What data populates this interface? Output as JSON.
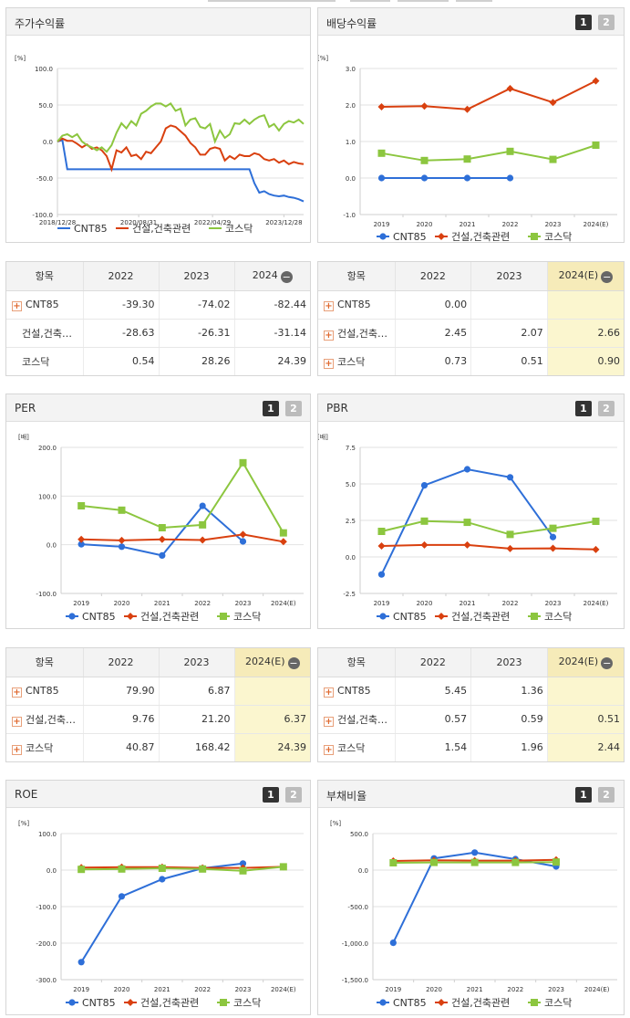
{
  "common": {
    "legend": [
      "CNT85",
      "건설,건축관련",
      "코스닥"
    ],
    "colors": [
      "#2e6fd8",
      "#d9400f",
      "#8cc63f"
    ],
    "btn1": "1",
    "btn2": "2"
  },
  "stock": {
    "title": "주가수익률",
    "unit": "[%]",
    "chart_data": {
      "type": "line",
      "title": "주가수익률",
      "ylabel": "[%]",
      "ylim": [
        -100,
        100
      ],
      "yticks": [
        "100.0",
        "50.0",
        "0.0",
        "-50.0",
        "-100.0"
      ],
      "xticks": [
        "2018/12/28",
        "2020/08/31",
        "2022/04/29",
        "2023/12/28"
      ],
      "x": [
        0,
        0.02,
        0.04,
        0.06,
        0.08,
        0.1,
        0.12,
        0.14,
        0.16,
        0.18,
        0.2,
        0.22,
        0.24,
        0.26,
        0.28,
        0.3,
        0.32,
        0.34,
        0.36,
        0.38,
        0.4,
        0.42,
        0.44,
        0.46,
        0.48,
        0.5,
        0.52,
        0.54,
        0.56,
        0.58,
        0.6,
        0.62,
        0.64,
        0.66,
        0.68,
        0.7,
        0.72,
        0.74,
        0.76,
        0.78,
        0.8,
        0.82,
        0.84,
        0.86,
        0.88,
        0.9,
        0.92,
        0.94,
        0.96,
        0.98,
        1.0
      ],
      "series": [
        {
          "name": "CNT85",
          "values": [
            0,
            2,
            -38,
            -38,
            -38,
            -38,
            -38,
            -38,
            -38,
            -38,
            -38,
            -38,
            -38,
            -38,
            -38,
            -38,
            -38,
            -38,
            -38,
            -38,
            -38,
            -38,
            -38,
            -38,
            -38,
            -38,
            -38,
            -38,
            -38,
            -38,
            -38,
            -38,
            -38,
            -38,
            -38,
            -38,
            -38,
            -38,
            -38,
            -38,
            -57,
            -70,
            -68,
            -72,
            -74,
            -75,
            -74,
            -76,
            -77,
            -79,
            -82
          ]
        },
        {
          "name": "건설,건축관련",
          "values": [
            0,
            4,
            1,
            1,
            -3,
            -8,
            -4,
            -10,
            -8,
            -12,
            -20,
            -38,
            -12,
            -15,
            -8,
            -20,
            -18,
            -24,
            -14,
            -16,
            -8,
            0,
            18,
            22,
            20,
            14,
            8,
            -2,
            -8,
            -18,
            -18,
            -10,
            -8,
            -10,
            -26,
            -20,
            -24,
            -18,
            -20,
            -20,
            -16,
            -18,
            -24,
            -26,
            -24,
            -29,
            -26,
            -31,
            -28,
            -30,
            -31
          ]
        },
        {
          "name": "코스닥",
          "values": [
            0,
            8,
            10,
            6,
            10,
            0,
            -5,
            -8,
            -12,
            -8,
            -14,
            -5,
            12,
            25,
            18,
            28,
            22,
            38,
            42,
            48,
            52,
            52,
            48,
            52,
            42,
            45,
            22,
            30,
            32,
            20,
            18,
            24,
            0,
            15,
            5,
            10,
            25,
            24,
            30,
            24,
            30,
            34,
            36,
            20,
            24,
            15,
            24,
            28,
            26,
            30,
            24
          ]
        }
      ]
    }
  },
  "dividend": {
    "title": "배당수익률",
    "unit": "[%]",
    "chart_data": {
      "type": "line",
      "title": "배당수익률",
      "ylabel": "[%]",
      "ylim": [
        -1.0,
        3.0
      ],
      "yticks": [
        "3.0",
        "2.0",
        "1.0",
        "0.0",
        "-1.0"
      ],
      "categories": [
        "2019",
        "2020",
        "2021",
        "2022",
        "2023",
        "2024(E)"
      ],
      "series": [
        {
          "name": "CNT85",
          "values": [
            0.0,
            0.0,
            0.0,
            0.0,
            null,
            null
          ]
        },
        {
          "name": "건설,건축관련",
          "values": [
            1.95,
            1.97,
            1.88,
            2.45,
            2.07,
            2.66
          ]
        },
        {
          "name": "코스닥",
          "values": [
            0.68,
            0.48,
            0.52,
            0.73,
            0.51,
            0.9
          ]
        }
      ]
    }
  },
  "table1": {
    "header": [
      "항목",
      "2022",
      "2023",
      "2024"
    ],
    "rows": [
      [
        "CNT85",
        "-39.30",
        "-74.02",
        "-82.44"
      ],
      [
        "건설,건축…",
        "-28.63",
        "-26.31",
        "-31.14"
      ],
      [
        "코스닥",
        "0.54",
        "28.26",
        "24.39"
      ]
    ]
  },
  "table2": {
    "header": [
      "항목",
      "2022",
      "2023",
      "2024(E)"
    ],
    "rows": [
      [
        "CNT85",
        "0.00",
        "",
        ""
      ],
      [
        "건설,건축…",
        "2.45",
        "2.07",
        "2.66"
      ],
      [
        "코스닥",
        "0.73",
        "0.51",
        "0.90"
      ]
    ]
  },
  "per": {
    "title": "PER",
    "unit": "[배]",
    "chart_data": {
      "type": "line",
      "title": "PER",
      "ylabel": "[배]",
      "ylim": [
        -100,
        200
      ],
      "yticks": [
        "200.0",
        "100.0",
        "0.0",
        "-100.0"
      ],
      "categories": [
        "2019",
        "2020",
        "2021",
        "2022",
        "2023",
        "2024(E)"
      ],
      "series": [
        {
          "name": "CNT85",
          "values": [
            1,
            -4,
            -22,
            79.9,
            6.87,
            null
          ]
        },
        {
          "name": "건설,건축관련",
          "values": [
            11,
            9,
            11,
            9.76,
            21.2,
            6.37
          ]
        },
        {
          "name": "코스닥",
          "values": [
            80,
            71,
            35,
            40.87,
            168.42,
            24.39
          ]
        }
      ]
    }
  },
  "pbr": {
    "title": "PBR",
    "unit": "[배]",
    "chart_data": {
      "type": "line",
      "title": "PBR",
      "ylabel": "[배]",
      "ylim": [
        -2.5,
        7.5
      ],
      "yticks": [
        "7.5",
        "5.0",
        "2.5",
        "0.0",
        "-2.5"
      ],
      "categories": [
        "2019",
        "2020",
        "2021",
        "2022",
        "2023",
        "2024(E)"
      ],
      "series": [
        {
          "name": "CNT85",
          "values": [
            -1.2,
            4.9,
            6.0,
            5.45,
            1.36,
            null
          ]
        },
        {
          "name": "건설,건축관련",
          "values": [
            0.75,
            0.82,
            0.82,
            0.57,
            0.59,
            0.51
          ]
        },
        {
          "name": "코스닥",
          "values": [
            1.75,
            2.45,
            2.37,
            1.54,
            1.96,
            2.44
          ]
        }
      ]
    }
  },
  "table3": {
    "header": [
      "항목",
      "2022",
      "2023",
      "2024(E)"
    ],
    "rows": [
      [
        "CNT85",
        "79.90",
        "6.87",
        ""
      ],
      [
        "건설,건축…",
        "9.76",
        "21.20",
        "6.37"
      ],
      [
        "코스닥",
        "40.87",
        "168.42",
        "24.39"
      ]
    ]
  },
  "table4": {
    "header": [
      "항목",
      "2022",
      "2023",
      "2024(E)"
    ],
    "rows": [
      [
        "CNT85",
        "5.45",
        "1.36",
        ""
      ],
      [
        "건설,건축…",
        "0.57",
        "0.59",
        "0.51"
      ],
      [
        "코스닥",
        "1.54",
        "1.96",
        "2.44"
      ]
    ]
  },
  "roe": {
    "title": "ROE",
    "unit": "[%]",
    "chart_data": {
      "type": "line",
      "title": "ROE",
      "ylabel": "[%]",
      "ylim": [
        -300,
        100
      ],
      "yticks": [
        "100.0",
        "0.0",
        "-100.0",
        "-200.0",
        "-300.0"
      ],
      "categories": [
        "2019",
        "2020",
        "2021",
        "2022",
        "2023",
        "2024(E)"
      ],
      "series": [
        {
          "name": "CNT85",
          "values": [
            -252,
            -72,
            -25,
            5,
            18,
            null
          ]
        },
        {
          "name": "건설,건축관련",
          "values": [
            7,
            8,
            8,
            6,
            6,
            9
          ]
        },
        {
          "name": "코스닥",
          "values": [
            2,
            3,
            5,
            3,
            -2,
            9
          ]
        }
      ]
    }
  },
  "debt": {
    "title": "부채비율",
    "unit": "[%]",
    "chart_data": {
      "type": "line",
      "title": "부채비율",
      "ylabel": "[%]",
      "ylim": [
        -1500,
        500
      ],
      "yticks": [
        "500.0",
        "0.0",
        "-500.0",
        "-1,000.0",
        "-1,500.0"
      ],
      "categories": [
        "2019",
        "2020",
        "2021",
        "2022",
        "2023",
        "2024(E)"
      ],
      "series": [
        {
          "name": "CNT85",
          "values": [
            -995,
            160,
            240,
            150,
            50,
            null
          ]
        },
        {
          "name": "건설,건축관련",
          "values": [
            125,
            135,
            130,
            130,
            140,
            null
          ]
        },
        {
          "name": "코스닥",
          "values": [
            100,
            105,
            105,
            105,
            110,
            null
          ]
        }
      ]
    }
  }
}
